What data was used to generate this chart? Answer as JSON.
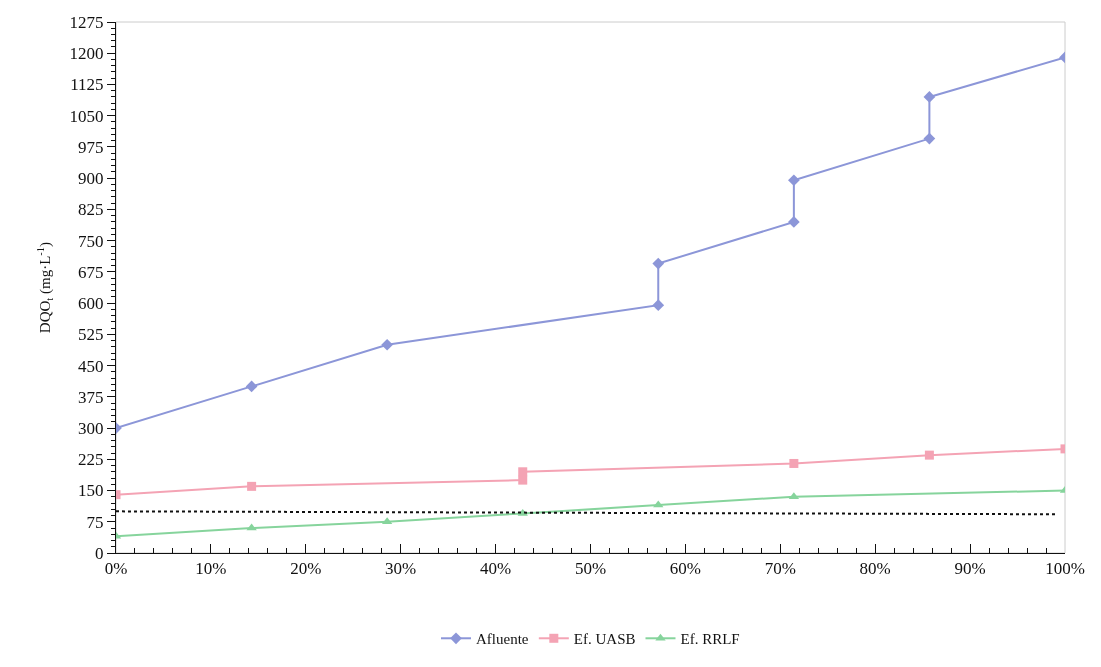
{
  "chart_data": {
    "type": "line",
    "ylabel": "DQO$_{t}$ (mg·L$^{-1}$)",
    "xlim": [
      0,
      100
    ],
    "xticks": [
      {
        "value": 0,
        "label": "0%"
      },
      {
        "value": 10,
        "label": "10%"
      },
      {
        "value": 20,
        "label": "20%"
      },
      {
        "value": 30,
        "label": "30%"
      },
      {
        "value": 40,
        "label": "40%"
      },
      {
        "value": 50,
        "label": "50%"
      },
      {
        "value": 60,
        "label": "60%"
      },
      {
        "value": 70,
        "label": "70%"
      },
      {
        "value": 80,
        "label": "80%"
      },
      {
        "value": 90,
        "label": "90%"
      },
      {
        "value": 100,
        "label": "100%"
      }
    ],
    "ylim": [
      0,
      1275
    ],
    "yticks": [
      0,
      75,
      150,
      225,
      300,
      375,
      450,
      525,
      600,
      675,
      750,
      825,
      900,
      975,
      1050,
      1125,
      1200,
      1275
    ],
    "grid": false,
    "legend": "bottom",
    "series": [
      {
        "name": "Afluente",
        "color": "#8c96d8",
        "marker": "diamond",
        "x": [
          0,
          14.29,
          28.57,
          57.14,
          57.14,
          71.43,
          71.43,
          85.71,
          85.71,
          100
        ],
        "values": [
          300,
          400,
          500,
          595,
          695,
          795,
          895,
          995,
          1095,
          1190
        ]
      },
      {
        "name": "Ef. UASB",
        "color": "#f4a3b4",
        "marker": "square",
        "x": [
          0,
          14.29,
          42.86,
          42.86,
          71.43,
          85.71,
          100
        ],
        "values": [
          140,
          160,
          175,
          195,
          215,
          235,
          250
        ]
      },
      {
        "name": "Ef. RRLF",
        "color": "#86d49c",
        "marker": "triangle",
        "x": [
          0,
          14.29,
          28.57,
          42.86,
          57.14,
          71.43,
          100
        ],
        "values": [
          40,
          60,
          75,
          95,
          115,
          135,
          150
        ]
      },
      {
        "color": "#111111",
        "marker": "none",
        "line_style": "dotted",
        "x": [
          0,
          99
        ],
        "values": [
          100,
          93
        ]
      }
    ]
  }
}
